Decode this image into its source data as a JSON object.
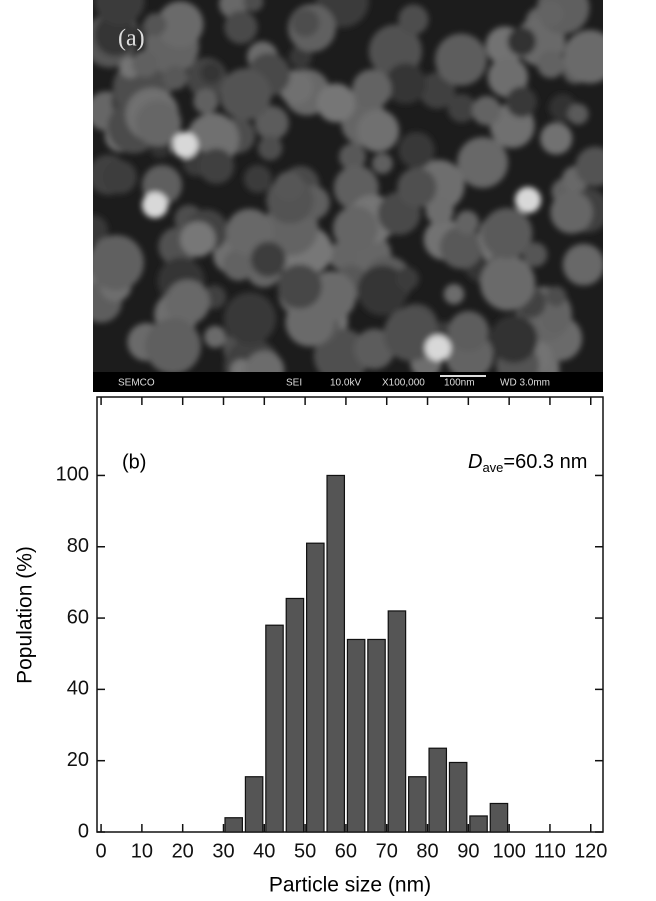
{
  "image": {
    "label": "(a)",
    "info_bar": [
      "SEMCO",
      "SEI",
      "10.0kV",
      "X100,000",
      "100nm",
      "WD 3.0mm"
    ]
  },
  "chart_data": {
    "type": "histogram",
    "panel_label": "(b)",
    "x_label": "Particle size (nm)",
    "y_label": "Population (%)",
    "annotation": {
      "symbol": "D",
      "subscript": "ave",
      "text": "=60.3 nm"
    },
    "bins": [
      30,
      35,
      40,
      45,
      50,
      55,
      60,
      65,
      70,
      75,
      80,
      85,
      90,
      95,
      100
    ],
    "values": [
      4,
      15.5,
      58,
      65.5,
      81,
      100,
      54,
      54,
      62,
      15.5,
      23.5,
      19.5,
      4.5,
      8
    ],
    "color": "#555555",
    "xlim": [
      -1,
      123
    ],
    "xticks": [
      0,
      10,
      20,
      30,
      40,
      50,
      60,
      70,
      80,
      90,
      100,
      110,
      120
    ],
    "ylim": [
      0,
      122
    ],
    "yticks": [
      0,
      20,
      40,
      60,
      80,
      100
    ]
  }
}
